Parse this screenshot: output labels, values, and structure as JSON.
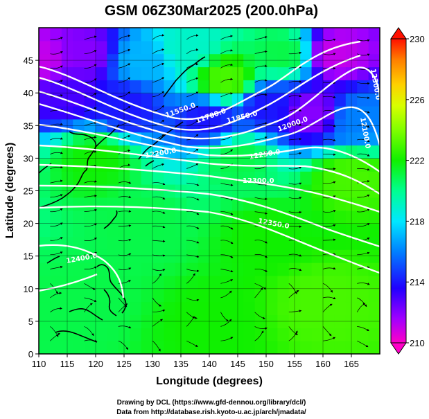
{
  "chart_data": {
    "type": "heatmap",
    "title": "GSM 06Z30Mar2025 (200.0hPa)",
    "xlabel": "Longitude (degrees)",
    "ylabel": "Latitude  (degrees)",
    "xlim": [
      110,
      170
    ],
    "ylim": [
      0,
      50
    ],
    "x_ticks": [
      110,
      115,
      120,
      125,
      130,
      135,
      140,
      145,
      150,
      155,
      160,
      165
    ],
    "y_ticks": [
      0,
      5,
      10,
      15,
      20,
      25,
      30,
      35,
      40,
      45
    ],
    "grid": true,
    "colorbar": {
      "ticks": [
        210,
        214,
        218,
        222,
        226,
        230
      ],
      "range": [
        210,
        230
      ],
      "colors": [
        "#ff00c8",
        "#8000ff",
        "#0000ff",
        "#00a0ff",
        "#00ffff",
        "#00ff80",
        "#00ff00",
        "#80ff00",
        "#c8ff00",
        "#ffff00",
        "#ffc800",
        "#ff8000",
        "#ff0000"
      ]
    },
    "contours": {
      "color": "#ffffff",
      "labels": [
        "11550.0",
        "11700.0",
        "11850.0",
        "12000.0",
        "12100.0",
        "12200.0",
        "12250.0",
        "12300.0",
        "12350.0",
        "12400.0",
        "12300.0"
      ]
    },
    "temperature_field": [
      {
        "lon": 110,
        "lat": 45,
        "value": 211
      },
      {
        "lon": 118,
        "lat": 46,
        "value": 212
      },
      {
        "lon": 128,
        "lat": 45,
        "value": 217
      },
      {
        "lon": 136,
        "lat": 47,
        "value": 219
      },
      {
        "lon": 143,
        "lat": 42,
        "value": 223
      },
      {
        "lon": 153,
        "lat": 46,
        "value": 221
      },
      {
        "lon": 162,
        "lat": 46,
        "value": 211
      },
      {
        "lon": 115,
        "lat": 40,
        "value": 213
      },
      {
        "lon": 125,
        "lat": 38,
        "value": 214
      },
      {
        "lon": 140,
        "lat": 36,
        "value": 214
      },
      {
        "lon": 150,
        "lat": 38,
        "value": 214
      },
      {
        "lon": 158,
        "lat": 37,
        "value": 212
      },
      {
        "lon": 166,
        "lat": 36,
        "value": 216
      },
      {
        "lon": 120,
        "lat": 30,
        "value": 222
      },
      {
        "lon": 145,
        "lat": 30,
        "value": 221
      },
      {
        "lon": 165,
        "lat": 27,
        "value": 223
      },
      {
        "lon": 128,
        "lat": 20,
        "value": 221
      },
      {
        "lon": 150,
        "lat": 18,
        "value": 222
      },
      {
        "lon": 118,
        "lat": 8,
        "value": 221
      },
      {
        "lon": 140,
        "lat": 5,
        "value": 222
      },
      {
        "lon": 160,
        "lat": 8,
        "value": 223
      }
    ]
  },
  "credits": {
    "line1": "Drawing by DCL (https://www.gfd-dennou.org/library/dcl/)",
    "line2": "Data from http://database.rish.kyoto-u.ac.jp/arch/jmadata/"
  }
}
